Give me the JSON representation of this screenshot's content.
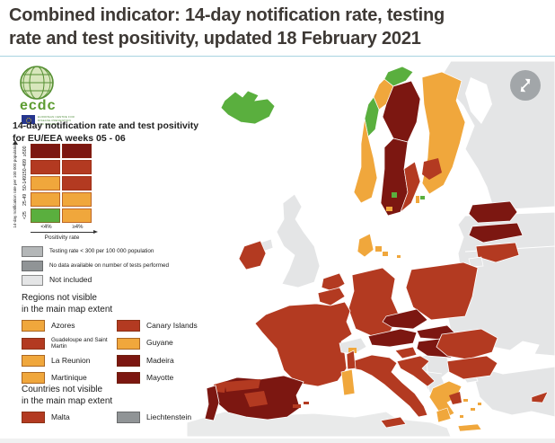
{
  "page": {
    "title_line1": "Combined indicator: 14-day notification rate, testing",
    "title_line2": "rate and test positivity, updated 18 February 2021"
  },
  "logo": {
    "text": "ecdc",
    "org_lines": [
      "EUROPEAN CENTRE FOR",
      "DISEASE PREVENTION",
      "AND CONTROL"
    ]
  },
  "map_header": {
    "subtitle_line1": "14-day notification rate and test positivity",
    "subtitle_line2": "for EU/EEA weeks 05 - 06"
  },
  "colors": {
    "green": "#5aaf3e",
    "orange": "#f0a73c",
    "red": "#b33a21",
    "dark": "#7c1711",
    "gray_testing": "#b4b7b8",
    "gray_nodata": "#909496",
    "gray_notincluded": "#e4e5e6",
    "africa": "#e9eaea"
  },
  "matrix_legend": {
    "y_axis_label": "14-day notification rate per 100 000 population",
    "x_axis_label": "Positivity rate",
    "row_labels": [
      "≥500",
      "150-499",
      "50-149",
      "25-49",
      "<25"
    ],
    "col_labels": [
      "<4%",
      "≥4%"
    ],
    "cells": [
      [
        "dark",
        "dark"
      ],
      [
        "red",
        "red"
      ],
      [
        "orange",
        "red"
      ],
      [
        "orange",
        "orange"
      ],
      [
        "green",
        "orange"
      ]
    ]
  },
  "gray_legend": [
    {
      "label": "Testing rate < 300 per 100 000 population",
      "color_key": "gray_testing"
    },
    {
      "label": "No data available on number of tests performed",
      "color_key": "gray_nodata"
    },
    {
      "label": "Not included",
      "color_key": "gray_notincluded"
    }
  ],
  "regions_legend": {
    "title_line1": "Regions not visible",
    "title_line2": "in the main map extent",
    "items": [
      {
        "label": "Azores",
        "color_key": "orange"
      },
      {
        "label": "Canary Islands",
        "color_key": "red"
      },
      {
        "label": "Guadeloupe and Saint Martin",
        "color_key": "red"
      },
      {
        "label": "Guyane",
        "color_key": "orange"
      },
      {
        "label": "La Reunion",
        "color_key": "orange"
      },
      {
        "label": "Madeira",
        "color_key": "dark"
      },
      {
        "label": "Martinique",
        "color_key": "orange"
      },
      {
        "label": "Mayotte",
        "color_key": "dark"
      }
    ]
  },
  "countries_legend": {
    "title_line1": "Countries not visible",
    "title_line2": "in the main map extent",
    "items": [
      {
        "label": "Malta",
        "color_key": "red"
      },
      {
        "label": "Liechtenstein",
        "color_key": "gray_nodata"
      }
    ]
  },
  "map": {
    "region_colors": {
      "iceland": "green",
      "norway-north": "green",
      "norway-upper": "orange",
      "norway-mid": "green",
      "norway-south": "orange",
      "sweden-north": "dark",
      "sweden-south": "dark",
      "sweden-southeast": "red",
      "sweden-green-spot": "green",
      "sweden-orange-spot": "orange",
      "gotland": "orange",
      "finland": "orange",
      "finland-south": "red",
      "aland": "green",
      "estonia": "dark",
      "latvia": "dark",
      "lithuania": "red",
      "kaliningrad": "gray_notincluded",
      "poland": "red",
      "germany": "red",
      "denmark": "orange",
      "denmark-island-1": "orange",
      "denmark-island-2": "orange",
      "bornholm": "orange",
      "netherlands": "red",
      "belgium": "red",
      "uk": "gray_notincluded",
      "northern-ireland": "gray_notincluded",
      "ireland": "red",
      "france": "red",
      "switzerland": "gray_notincluded",
      "switzerland-south": "orange",
      "austria": "dark",
      "czechia": "dark",
      "slovakia": "dark",
      "hungary": "dark",
      "slovenia": "red",
      "croatia": "red",
      "italy": "red",
      "sicily": "red",
      "sardinia": "orange",
      "corsica": "red",
      "balearic-1": "red",
      "balearic-2": "red",
      "spain": "dark",
      "spain-north": "red",
      "spain-center": "red",
      "galicia": "red",
      "portugal": "dark",
      "greece": "orange",
      "attica": "red",
      "peloponnese": "orange",
      "greek-island-1": "orange",
      "greek-island-2": "orange",
      "greek-island-3": "orange",
      "greek-island-4": "orange",
      "crete": "orange",
      "cyprus": "red",
      "romania": "red",
      "bulgaria": "red",
      "russia": "gray_notincluded",
      "ukraine-belarus": "gray_notincluded",
      "turkey": "gray_notincluded",
      "turkey-europe": "gray_notincluded",
      "balkans": "gray_notincluded",
      "north-africa": "africa"
    }
  }
}
